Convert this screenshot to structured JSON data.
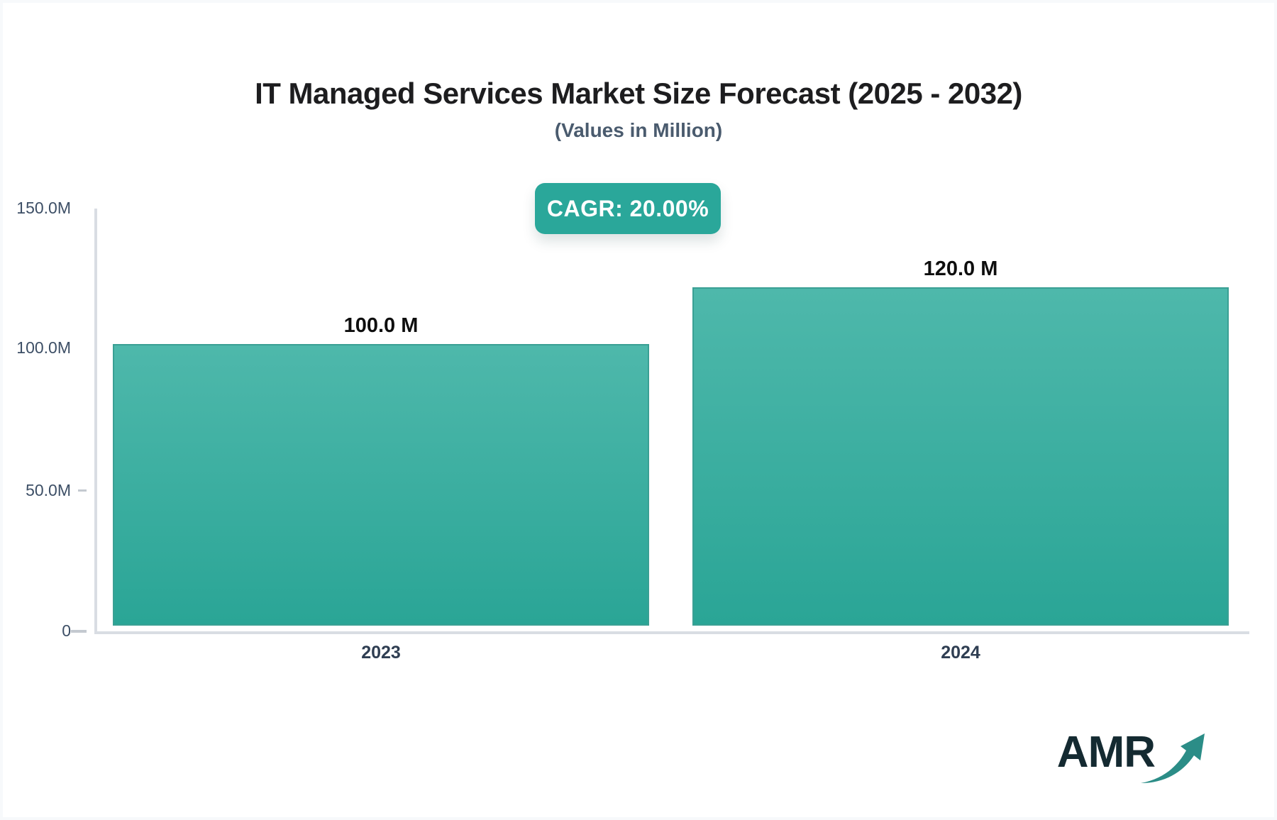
{
  "header": {
    "title": "IT Managed Services Market Size Forecast (2025 - 2032)",
    "subtitle": "(Values in Million)",
    "cagr_badge": "CAGR: 20.00%"
  },
  "chart_data": {
    "type": "bar",
    "title": "IT Managed Services Market Size Forecast (2025 - 2032)",
    "subtitle": "(Values in Million)",
    "categories": [
      "2023",
      "2024"
    ],
    "values": [
      100.0,
      120.0
    ],
    "value_labels": [
      "100.0 M",
      "120.0 M"
    ],
    "unit": "Million",
    "cagr": "20.00%",
    "xlabel": "",
    "ylabel": "",
    "ylim": [
      0,
      150
    ],
    "y_tick_labels": [
      "150.0M",
      "100.0M",
      "50.0M",
      "0"
    ],
    "grid": false,
    "legend": false,
    "bar_color_top": "#4eb8ab",
    "bar_color_bottom": "#2aa596"
  },
  "colors": {
    "accent": "#2aa79a",
    "bar_border": "#3aa094",
    "axis_line": "#d9dde3",
    "title_text": "#1d1d1f",
    "subtitle_text": "#4a5b6e",
    "axis_text": "#3d4f66",
    "logo_text": "#142a31",
    "logo_arrow": "#2b8d87"
  },
  "logo": {
    "text": "AMR",
    "arrow_icon": "trend-up-arrow"
  }
}
